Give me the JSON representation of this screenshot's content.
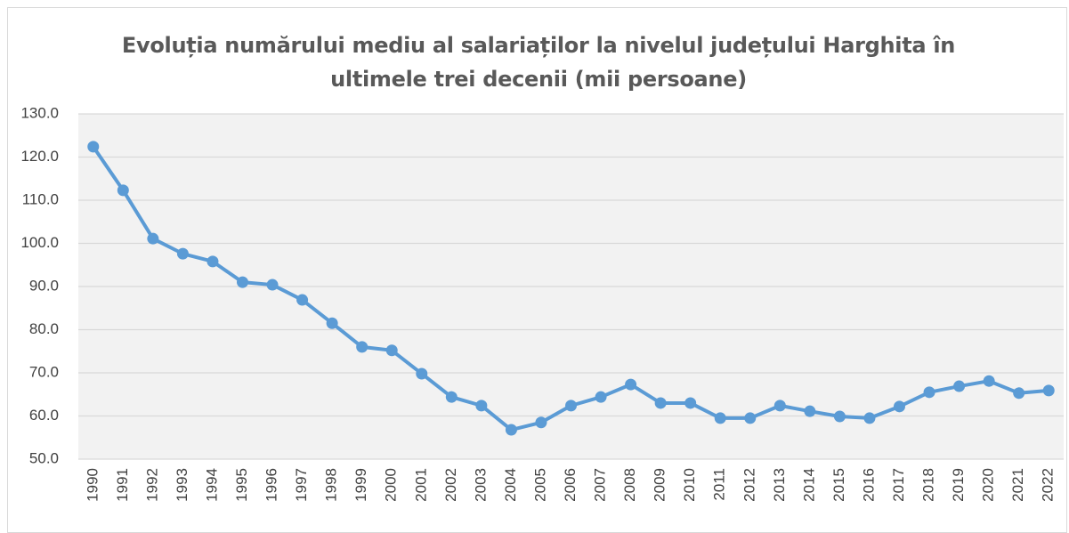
{
  "chart_data": {
    "type": "line",
    "title": "Evoluția numărului mediu al salariaților la nivelul județului Harghita în ultimele trei decenii (mii persoane)",
    "categories": [
      "1990",
      "1991",
      "1992",
      "1993",
      "1994",
      "1995",
      "1996",
      "1997",
      "1998",
      "1999",
      "2000",
      "2001",
      "2002",
      "2003",
      "2004",
      "2005",
      "2006",
      "2007",
      "2008",
      "2009",
      "2010",
      "2011",
      "2012",
      "2013",
      "2014",
      "2015",
      "2016",
      "2017",
      "2018",
      "2019",
      "2020",
      "2021",
      "2022"
    ],
    "series": [
      {
        "name": null,
        "color": "#5b9bd5",
        "values": [
          122.4,
          112.3,
          101.1,
          97.6,
          95.8,
          91.0,
          90.4,
          86.9,
          81.5,
          76.0,
          75.2,
          69.8,
          64.4,
          62.4,
          56.8,
          58.5,
          62.4,
          64.4,
          67.3,
          63.0,
          63.0,
          59.5,
          59.5,
          62.4,
          61.1,
          59.9,
          59.5,
          62.2,
          65.5,
          66.9,
          68.1,
          65.3,
          65.9
        ]
      }
    ],
    "ylim": [
      50,
      130
    ],
    "yticks": [
      {
        "value": 50,
        "label": "50.0"
      },
      {
        "value": 60,
        "label": "60.0"
      },
      {
        "value": 70,
        "label": "70.0"
      },
      {
        "value": 80,
        "label": "80.0"
      },
      {
        "value": 90,
        "label": "90.0"
      },
      {
        "value": 100,
        "label": "100.0"
      },
      {
        "value": 110,
        "label": "110.0"
      },
      {
        "value": 120,
        "label": "120.0"
      },
      {
        "value": 130,
        "label": "130.0"
      }
    ],
    "grid": true
  }
}
